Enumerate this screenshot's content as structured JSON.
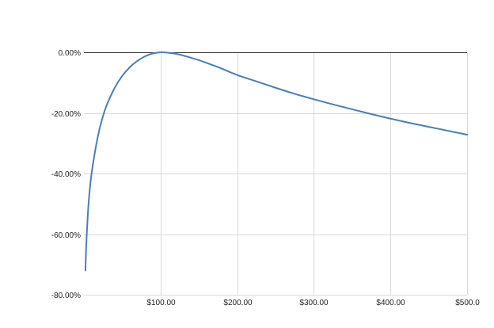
{
  "chart_data": {
    "type": "line",
    "title": "",
    "xlabel": "",
    "ylabel": "",
    "xlim": [
      0,
      500
    ],
    "ylim": [
      -80,
      0
    ],
    "grid": true,
    "legend": "none",
    "x_ticks": [
      {
        "value": 100,
        "label": "$100.00"
      },
      {
        "value": 200,
        "label": "$200.00"
      },
      {
        "value": 300,
        "label": "$300.00"
      },
      {
        "value": 400,
        "label": "$400.00"
      },
      {
        "value": 500,
        "label": "$500.0"
      }
    ],
    "y_ticks": [
      {
        "value": 0,
        "label": "0.00%"
      },
      {
        "value": -20,
        "label": "-20.00%"
      },
      {
        "value": -40,
        "label": "-40.00%"
      },
      {
        "value": -60,
        "label": "-60.00%"
      },
      {
        "value": -80,
        "label": "-80.00%"
      }
    ],
    "series": [
      {
        "color": "#4a7ebb",
        "x": [
          2,
          3,
          5,
          7,
          10,
          15,
          20,
          25,
          30,
          40,
          50,
          60,
          70,
          80,
          90,
          100,
          110,
          120,
          130,
          150,
          175,
          200,
          225,
          250,
          275,
          300,
          325,
          350,
          375,
          400,
          425,
          450,
          475,
          500
        ],
        "y": [
          -72,
          -64,
          -54,
          -47,
          -40,
          -32,
          -25.7,
          -21,
          -17.3,
          -11.8,
          -7.8,
          -4.9,
          -2.8,
          -1.3,
          -0.4,
          0,
          -0.15,
          -0.5,
          -1.1,
          -2.6,
          -4.9,
          -7.5,
          -9.6,
          -11.7,
          -13.7,
          -15.5,
          -17.2,
          -18.8,
          -20.4,
          -21.9,
          -23.3,
          -24.6,
          -25.9,
          -27.2
        ]
      }
    ]
  }
}
